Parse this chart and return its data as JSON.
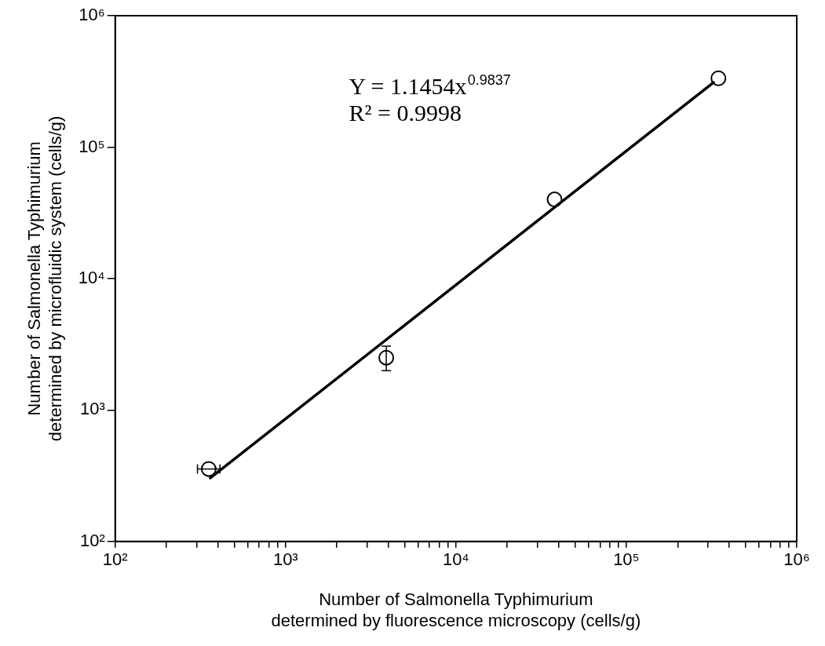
{
  "chart_data": {
    "type": "scatter",
    "xlabel": "Number of Salmonella Typhimurium\ndetermined by fluorescence microscopy (cells/g)",
    "ylabel": "Number of Salmonella Typhimurium\ndetermined by microfluidic system (cells/g)",
    "log": "xy",
    "grid": false,
    "legend": false,
    "xlim": [
      100,
      1000000
    ],
    "ylim": [
      100,
      1000000
    ],
    "xticks": [
      {
        "value": 100,
        "label": "10²"
      },
      {
        "value": 200,
        "label": null
      },
      {
        "value": 300,
        "label": null
      },
      {
        "value": 400,
        "label": null
      },
      {
        "value": 500,
        "label": null
      },
      {
        "value": 600,
        "label": null
      },
      {
        "value": 700,
        "label": null
      },
      {
        "value": 800,
        "label": null
      },
      {
        "value": 900,
        "label": null
      },
      {
        "value": 1000,
        "label": "10³"
      },
      {
        "value": 2000,
        "label": null
      },
      {
        "value": 3000,
        "label": null
      },
      {
        "value": 4000,
        "label": null
      },
      {
        "value": 5000,
        "label": null
      },
      {
        "value": 6000,
        "label": null
      },
      {
        "value": 7000,
        "label": null
      },
      {
        "value": 8000,
        "label": null
      },
      {
        "value": 9000,
        "label": null
      },
      {
        "value": 10000,
        "label": "10⁴"
      },
      {
        "value": 20000,
        "label": null
      },
      {
        "value": 30000,
        "label": null
      },
      {
        "value": 40000,
        "label": null
      },
      {
        "value": 50000,
        "label": null
      },
      {
        "value": 60000,
        "label": null
      },
      {
        "value": 70000,
        "label": null
      },
      {
        "value": 80000,
        "label": null
      },
      {
        "value": 90000,
        "label": null
      },
      {
        "value": 100000,
        "label": "10⁵"
      },
      {
        "value": 200000,
        "label": null
      },
      {
        "value": 300000,
        "label": null
      },
      {
        "value": 400000,
        "label": null
      },
      {
        "value": 500000,
        "label": null
      },
      {
        "value": 600000,
        "label": null
      },
      {
        "value": 700000,
        "label": null
      },
      {
        "value": 800000,
        "label": null
      },
      {
        "value": 900000,
        "label": null
      },
      {
        "value": 1000000,
        "label": "10⁶"
      }
    ],
    "yticks": [
      {
        "value": 100,
        "label": "10²"
      },
      {
        "value": 1000,
        "label": "10³"
      },
      {
        "value": 10000,
        "label": "10⁴"
      },
      {
        "value": 100000,
        "label": "10⁵"
      },
      {
        "value": 1000000,
        "label": "10⁶"
      }
    ],
    "series": [
      {
        "marker": "circle",
        "color": "#000000",
        "x": [
          354,
          3900,
          37900,
          347000
        ],
        "values": [
          356,
          2500,
          40000,
          334000
        ],
        "errors": [
          null,
          [
            1990,
            3060
          ],
          null,
          null
        ],
        "xerrors": [
          [
            304,
            412
          ],
          null,
          null,
          null
        ]
      },
      {
        "type": "line",
        "marker": "none",
        "color": "#000000",
        "x": [
          357,
          329000
        ],
        "values": [
          300,
          315000
        ]
      }
    ],
    "annotations": [
      "Y = 1.1454x$^{0.9837}$",
      "R² = 0.9998"
    ]
  }
}
